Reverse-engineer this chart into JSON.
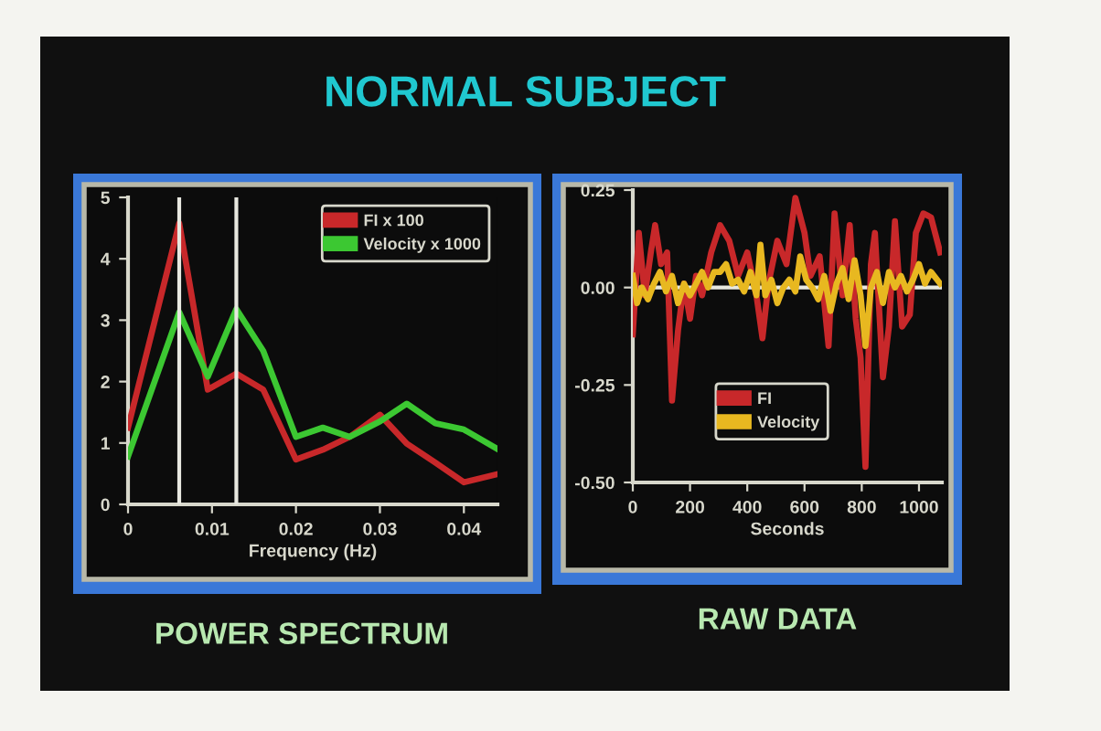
{
  "chart_data": [
    {
      "type": "line",
      "title": "POWER SPECTRUM",
      "xlabel": "Frequency (Hz)",
      "annotations": [
        "NORMAL SUBJECT"
      ],
      "xlim": [
        0,
        0.044
      ],
      "ylim": [
        0,
        5
      ],
      "xticks": [
        0,
        0.01,
        0.02,
        0.03,
        0.04
      ],
      "yticks": [
        0,
        1,
        2,
        3,
        4,
        5
      ],
      "legend": "top right",
      "grid": false,
      "ref_lines": [
        {
          "axis": "x",
          "value": 0.0061,
          "color": "#e8e8e0"
        },
        {
          "axis": "x",
          "value": 0.0129,
          "color": "#e8e8e0"
        }
      ],
      "series": [
        {
          "name": "FI x 100",
          "color": "#c8282a",
          "x": [
            0,
            0.0061,
            0.0095,
            0.0129,
            0.0161,
            0.02,
            0.0232,
            0.0264,
            0.03,
            0.0332,
            0.0366,
            0.04,
            0.0439
          ],
          "values": [
            1.25,
            4.58,
            1.87,
            2.13,
            1.87,
            0.73,
            0.89,
            1.1,
            1.46,
            0.99,
            0.68,
            0.36,
            0.49
          ]
        },
        {
          "name": "Velocity x 1000",
          "color": "#3cc832",
          "x": [
            0,
            0.0061,
            0.0095,
            0.0129,
            0.0161,
            0.02,
            0.0232,
            0.0264,
            0.03,
            0.0332,
            0.0366,
            0.04,
            0.0439
          ],
          "values": [
            0.78,
            3.13,
            2.08,
            3.18,
            2.5,
            1.1,
            1.25,
            1.1,
            1.35,
            1.64,
            1.32,
            1.22,
            0.91
          ]
        }
      ]
    },
    {
      "type": "line",
      "title": "RAW DATA",
      "xlabel": "Seconds",
      "xlim": [
        0,
        1080
      ],
      "ylim": [
        -0.5,
        0.25
      ],
      "xticks": [
        0,
        200,
        400,
        600,
        800,
        1000
      ],
      "yticks": [
        {
          "value": -0.5,
          "label": "-0.50"
        },
        {
          "value": -0.25,
          "label": "-0.25"
        },
        {
          "value": 0,
          "label": "0.00"
        },
        {
          "value": 0.25,
          "label": "0.25"
        }
      ],
      "legend": "bottom",
      "grid": false,
      "ref_lines": [
        {
          "axis": "y",
          "value": 0,
          "color": "#e8e8e0"
        }
      ],
      "series": [
        {
          "name": "FI",
          "color": "#c8282a",
          "x": [
            0,
            21,
            42,
            63,
            78,
            99,
            120,
            137,
            158,
            179,
            200,
            221,
            242,
            274,
            305,
            337,
            368,
            400,
            432,
            453,
            474,
            505,
            537,
            568,
            600,
            621,
            653,
            684,
            705,
            733,
            758,
            779,
            796,
            813,
            832,
            846,
            874,
            895,
            916,
            941,
            968,
            989,
            1015,
            1042,
            1074
          ],
          "values": [
            -0.12,
            0.14,
            -0.02,
            0.09,
            0.16,
            0.06,
            0.09,
            -0.29,
            -0.11,
            0.01,
            -0.08,
            0.03,
            -0.02,
            0.09,
            0.16,
            0.12,
            0.03,
            0.09,
            -0.02,
            -0.13,
            0.01,
            0.12,
            0.06,
            0.23,
            0.14,
            0.03,
            0.08,
            -0.15,
            0.19,
            -0.02,
            0.16,
            -0.08,
            -0.18,
            -0.46,
            0.06,
            0.14,
            -0.23,
            -0.1,
            0.17,
            -0.1,
            -0.07,
            0.14,
            0.19,
            0.18,
            0.09
          ]
        },
        {
          "name": "Velocity",
          "color": "#e8b820",
          "x": [
            0,
            15,
            32,
            53,
            74,
            95,
            116,
            137,
            158,
            179,
            200,
            221,
            242,
            263,
            284,
            305,
            326,
            347,
            368,
            389,
            411,
            432,
            446,
            463,
            484,
            505,
            526,
            547,
            568,
            585,
            606,
            627,
            648,
            669,
            691,
            712,
            733,
            754,
            775,
            796,
            813,
            832,
            853,
            874,
            895,
            916,
            937,
            958,
            979,
            1000,
            1021,
            1042,
            1074
          ],
          "values": [
            0.03,
            -0.04,
            0.0,
            -0.03,
            0.01,
            0.04,
            -0.01,
            0.03,
            -0.04,
            0.01,
            -0.02,
            0.01,
            0.04,
            0.0,
            0.04,
            0.04,
            0.06,
            0.01,
            0.02,
            -0.01,
            0.04,
            -0.02,
            0.11,
            -0.02,
            0.02,
            -0.04,
            0.0,
            0.02,
            -0.01,
            0.08,
            0.02,
            0.0,
            -0.03,
            0.03,
            -0.06,
            0.01,
            0.05,
            -0.03,
            0.07,
            -0.02,
            -0.15,
            0.0,
            0.04,
            -0.04,
            0.04,
            0.0,
            0.03,
            -0.01,
            0.02,
            0.06,
            0.01,
            0.04,
            0.01
          ]
        }
      ]
    }
  ]
}
